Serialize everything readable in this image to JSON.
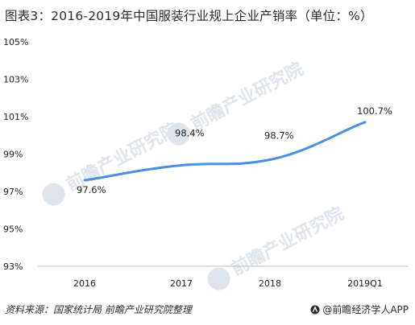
{
  "title": "图表3：2016-2019年中国服装行业规上企业产销率（单位：%）",
  "source": "资料来源：国家统计局  前瞻产业研究院整理",
  "brand": "@前瞻经济学人APP",
  "watermark": "前瞻产业研究院",
  "colors": {
    "line": "#4a8fe2",
    "axis": "#bfbfbf",
    "watermark": "#dfe5ec"
  },
  "chart_data": {
    "type": "line",
    "categories": [
      "2016",
      "2017",
      "2018",
      "2019Q1"
    ],
    "values": [
      97.6,
      98.4,
      98.7,
      100.7
    ],
    "data_labels": [
      "97.6%",
      "98.4%",
      "98.7%",
      "100.7%"
    ],
    "yticks": [
      "93%",
      "95%",
      "97%",
      "99%",
      "101%",
      "103%",
      "105%"
    ],
    "ylim": [
      93,
      105
    ],
    "grid": false,
    "legend": "none",
    "smooth": true
  }
}
